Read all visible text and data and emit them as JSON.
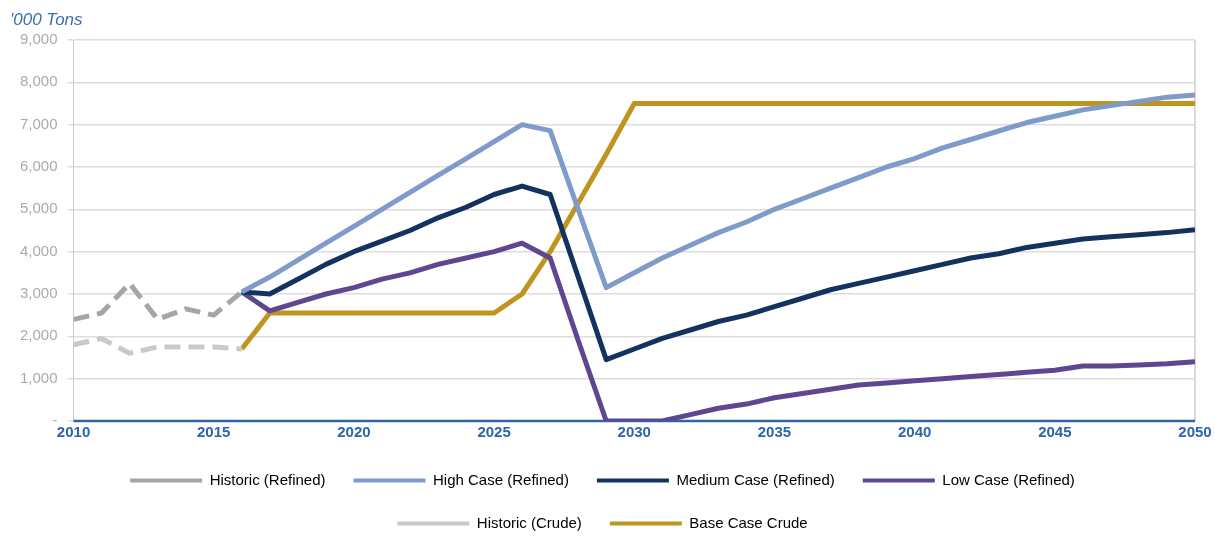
{
  "chart_data": {
    "type": "line",
    "ylabel": "'000 Tons",
    "xlim": [
      2010,
      2050
    ],
    "xticks": [
      2010,
      2015,
      2020,
      2025,
      2030,
      2035,
      2040,
      2045,
      2050
    ],
    "ylim": [
      0,
      9000
    ],
    "yticks": [
      {
        "value": 0,
        "label": "-"
      },
      {
        "value": 1000,
        "label": "1,000"
      },
      {
        "value": 2000,
        "label": "2,000"
      },
      {
        "value": 3000,
        "label": "3,000"
      },
      {
        "value": 4000,
        "label": "4,000"
      },
      {
        "value": 5000,
        "label": "5,000"
      },
      {
        "value": 6000,
        "label": "6,000"
      },
      {
        "value": 7000,
        "label": "7,000"
      },
      {
        "value": 8000,
        "label": "8,000"
      },
      {
        "value": 9000,
        "label": "9,000"
      }
    ],
    "grid": "y",
    "legend": "bottom",
    "marker": "none",
    "series": [
      {
        "name": "Historic (Refined)",
        "color": "#a5a5a5",
        "line_style": "dashed",
        "x": [
          2010,
          2011,
          2012,
          2013,
          2014,
          2015,
          2016
        ],
        "values": [
          2400,
          2550,
          3250,
          2400,
          2650,
          2500,
          3050
        ]
      },
      {
        "name": "High Case (Refined)",
        "color": "#7f9bc9",
        "line_style": "solid",
        "x": [
          2016,
          2017,
          2018,
          2019,
          2020,
          2021,
          2022,
          2023,
          2024,
          2025,
          2026,
          2027,
          2028,
          2029,
          2030,
          2031,
          2032,
          2033,
          2034,
          2035,
          2036,
          2037,
          2038,
          2039,
          2040,
          2041,
          2042,
          2043,
          2044,
          2045,
          2046,
          2047,
          2048,
          2049,
          2050
        ],
        "values": [
          3050,
          3400,
          3800,
          4200,
          4600,
          5000,
          5400,
          5800,
          6200,
          6600,
          7000,
          6860,
          5000,
          3150,
          3500,
          3850,
          4150,
          4450,
          4700,
          5000,
          5250,
          5500,
          5750,
          6000,
          6200,
          6450,
          6650,
          6850,
          7050,
          7200,
          7350,
          7450,
          7550,
          7650,
          7700
        ]
      },
      {
        "name": "Medium Case (Refined)",
        "color": "#13335e",
        "line_style": "solid",
        "x": [
          2016,
          2017,
          2018,
          2019,
          2020,
          2021,
          2022,
          2023,
          2024,
          2025,
          2026,
          2027,
          2028,
          2029,
          2030,
          2031,
          2032,
          2033,
          2034,
          2035,
          2036,
          2037,
          2038,
          2039,
          2040,
          2041,
          2042,
          2043,
          2044,
          2045,
          2046,
          2047,
          2048,
          2049,
          2050
        ],
        "values": [
          3050,
          3000,
          3350,
          3700,
          4000,
          4250,
          4500,
          4800,
          5050,
          5350,
          5550,
          5350,
          3400,
          1450,
          1700,
          1950,
          2150,
          2350,
          2500,
          2700,
          2900,
          3100,
          3250,
          3400,
          3550,
          3700,
          3850,
          3950,
          4100,
          4200,
          4300,
          4350,
          4400,
          4450,
          4520
        ]
      },
      {
        "name": "Low Case (Refined)",
        "color": "#5f4690",
        "line_style": "solid",
        "x": [
          2016,
          2017,
          2018,
          2019,
          2020,
          2021,
          2022,
          2023,
          2024,
          2025,
          2026,
          2027,
          2028,
          2029,
          2030,
          2031,
          2032,
          2033,
          2034,
          2035,
          2036,
          2037,
          2038,
          2039,
          2040,
          2041,
          2042,
          2043,
          2044,
          2045,
          2046,
          2047,
          2048,
          2049,
          2050
        ],
        "values": [
          3050,
          2600,
          2800,
          3000,
          3150,
          3350,
          3500,
          3700,
          3850,
          4000,
          4200,
          3850,
          1900,
          0,
          0,
          0,
          150,
          300,
          400,
          550,
          650,
          750,
          850,
          900,
          950,
          1000,
          1050,
          1100,
          1150,
          1200,
          1300,
          1300,
          1320,
          1350,
          1400
        ]
      },
      {
        "name": "Historic (Crude)",
        "color": "#c9c9c9",
        "line_style": "dashed",
        "x": [
          2010,
          2011,
          2012,
          2013,
          2014,
          2015,
          2016
        ],
        "values": [
          1800,
          1950,
          1600,
          1750,
          1750,
          1750,
          1700
        ]
      },
      {
        "name": "Base Case Crude",
        "color": "#bf9520",
        "line_style": "solid",
        "x": [
          2016,
          2017,
          2018,
          2019,
          2020,
          2021,
          2022,
          2023,
          2024,
          2025,
          2026,
          2027,
          2028,
          2029,
          2030,
          2035,
          2040,
          2045,
          2050
        ],
        "values": [
          1700,
          2550,
          2550,
          2550,
          2550,
          2550,
          2550,
          2550,
          2550,
          2550,
          3000,
          4000,
          5150,
          6300,
          7500,
          7500,
          7500,
          7500,
          7500
        ]
      }
    ]
  }
}
